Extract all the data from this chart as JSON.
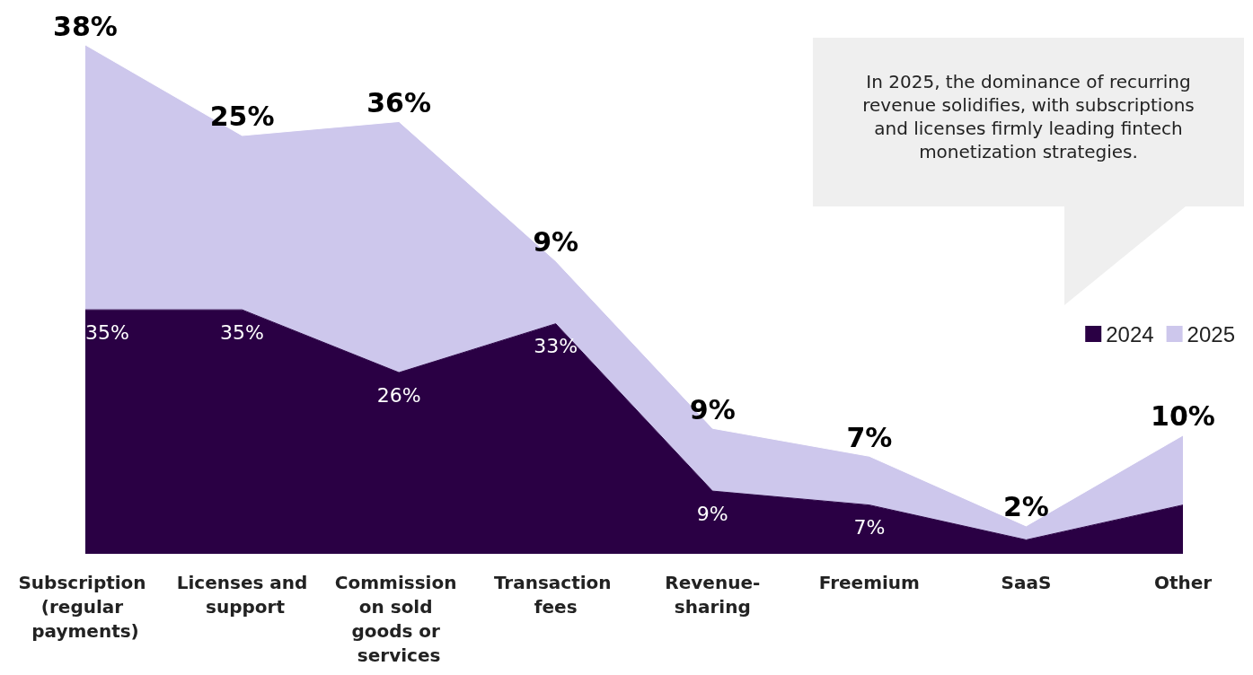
{
  "chart_data": {
    "type": "area",
    "stacked": true,
    "legend": "right",
    "categories": [
      "Subscription (regular payments)",
      "Licenses and support",
      "Commission on sold goods or services",
      "Transaction fees",
      "Revenue-sharing",
      "Freemium",
      "SaaS",
      "Other"
    ],
    "series": [
      {
        "name": "2024",
        "color": "#2a0044",
        "values": [
          35,
          35,
          26,
          33,
          9,
          7,
          2,
          7
        ],
        "value_labels": [
          "35%",
          "35%",
          "26%",
          "33%",
          "9%",
          "7%",
          null,
          null
        ]
      },
      {
        "name": "2025",
        "color": "#cdc7ec",
        "values": [
          38,
          25,
          36,
          9,
          9,
          7,
          2,
          10
        ],
        "value_labels": [
          "38%",
          "25%",
          "36%",
          "9%",
          "9%",
          "7%",
          "2%",
          "10%"
        ]
      }
    ],
    "annotations": [
      "In 2025, the dominance of recurring revenue solidifies, with subscriptions and licenses firmly leading fintech monetization strategies."
    ]
  }
}
